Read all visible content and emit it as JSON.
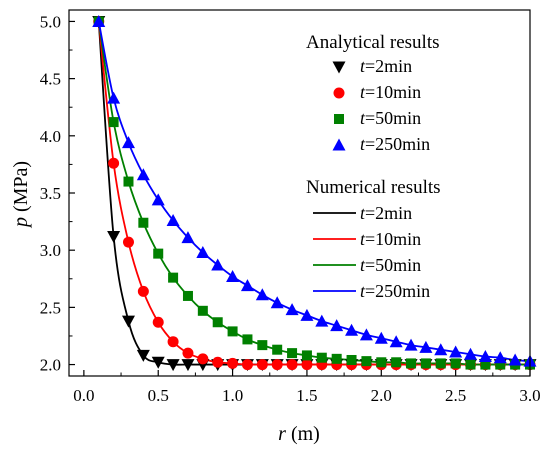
{
  "chart_data": {
    "type": "line",
    "xlabel": {
      "var": "r",
      "unit": " (m)"
    },
    "ylabel": {
      "var": "p",
      "unit": " (MPa)"
    },
    "xlim": [
      -0.1,
      3.0
    ],
    "ylim": [
      1.9,
      5.1
    ],
    "xticks": [
      0.0,
      0.5,
      1.0,
      1.5,
      2.0,
      2.5,
      3.0
    ],
    "xtick_labels": [
      "0.0",
      "0.5",
      "1.0",
      "1.5",
      "2.0",
      "2.5",
      "3.0"
    ],
    "yticks": [
      2.0,
      2.5,
      3.0,
      3.5,
      4.0,
      4.5,
      5.0
    ],
    "ytick_labels": [
      "2.0",
      "2.5",
      "3.0",
      "3.5",
      "4.0",
      "4.5",
      "5.0"
    ],
    "grid": false,
    "legend": {
      "placement": "top-right",
      "group1_title": "Analytical results",
      "group2_title": "Numerical results"
    },
    "series": [
      {
        "name": "t=2min",
        "label_var": "t",
        "label_rest": "=2min",
        "color": "#000000",
        "marker": "triangle-down",
        "x": [
          0.1,
          0.2,
          0.3,
          0.4,
          0.5,
          0.6,
          0.7,
          0.8,
          0.9,
          1.0,
          1.1,
          1.2,
          1.3,
          1.4,
          1.5,
          1.6,
          1.7,
          1.8,
          1.9,
          2.0,
          2.1,
          2.2,
          2.3,
          2.4,
          2.5,
          2.6,
          2.7,
          2.8,
          2.9,
          3.0
        ],
        "y": [
          5.0,
          3.12,
          2.38,
          2.08,
          2.02,
          2.0,
          2.0,
          2.0,
          2.0,
          2.0,
          2.0,
          2.0,
          2.0,
          2.0,
          2.0,
          2.0,
          2.0,
          2.0,
          2.0,
          2.0,
          2.0,
          2.0,
          2.0,
          2.0,
          2.0,
          2.0,
          2.0,
          2.0,
          2.0,
          2.0
        ]
      },
      {
        "name": "t=10min",
        "label_var": "t",
        "label_rest": "=10min",
        "color": "#ff0000",
        "marker": "circle",
        "x": [
          0.1,
          0.2,
          0.3,
          0.4,
          0.5,
          0.6,
          0.7,
          0.8,
          0.9,
          1.0,
          1.1,
          1.2,
          1.3,
          1.4,
          1.5,
          1.6,
          1.7,
          1.8,
          1.9,
          2.0,
          2.1,
          2.2,
          2.3,
          2.4,
          2.5,
          2.6,
          2.7,
          2.8,
          2.9,
          3.0
        ],
        "y": [
          5.0,
          3.76,
          3.07,
          2.64,
          2.37,
          2.2,
          2.1,
          2.05,
          2.02,
          2.01,
          2.0,
          2.0,
          2.0,
          2.0,
          2.0,
          2.0,
          2.0,
          2.0,
          2.0,
          2.0,
          2.0,
          2.0,
          2.0,
          2.0,
          2.0,
          2.0,
          2.0,
          2.0,
          2.0,
          2.0
        ]
      },
      {
        "name": "t=50min",
        "label_var": "t",
        "label_rest": "=50min",
        "color": "#008000",
        "marker": "square",
        "x": [
          0.1,
          0.2,
          0.3,
          0.4,
          0.5,
          0.6,
          0.7,
          0.8,
          0.9,
          1.0,
          1.1,
          1.2,
          1.3,
          1.4,
          1.5,
          1.6,
          1.7,
          1.8,
          1.9,
          2.0,
          2.1,
          2.2,
          2.3,
          2.4,
          2.5,
          2.6,
          2.7,
          2.8,
          2.9,
          3.0
        ],
        "y": [
          5.0,
          4.12,
          3.6,
          3.24,
          2.97,
          2.76,
          2.6,
          2.47,
          2.37,
          2.29,
          2.22,
          2.17,
          2.13,
          2.1,
          2.08,
          2.06,
          2.05,
          2.04,
          2.03,
          2.02,
          2.02,
          2.01,
          2.01,
          2.01,
          2.01,
          2.0,
          2.0,
          2.0,
          2.0,
          2.0
        ]
      },
      {
        "name": "t=250min",
        "label_var": "t",
        "label_rest": "=250min",
        "color": "#0000ff",
        "marker": "triangle-up",
        "x": [
          0.1,
          0.2,
          0.3,
          0.4,
          0.5,
          0.6,
          0.7,
          0.8,
          0.9,
          1.0,
          1.1,
          1.2,
          1.3,
          1.4,
          1.5,
          1.6,
          1.7,
          1.8,
          1.9,
          2.0,
          2.1,
          2.2,
          2.3,
          2.4,
          2.5,
          2.6,
          2.7,
          2.8,
          2.9,
          3.0
        ],
        "y": [
          5.0,
          4.33,
          3.94,
          3.66,
          3.44,
          3.26,
          3.11,
          2.98,
          2.87,
          2.77,
          2.69,
          2.61,
          2.54,
          2.48,
          2.43,
          2.38,
          2.34,
          2.3,
          2.26,
          2.23,
          2.2,
          2.17,
          2.15,
          2.13,
          2.11,
          2.09,
          2.07,
          2.06,
          2.04,
          2.03
        ]
      }
    ]
  }
}
